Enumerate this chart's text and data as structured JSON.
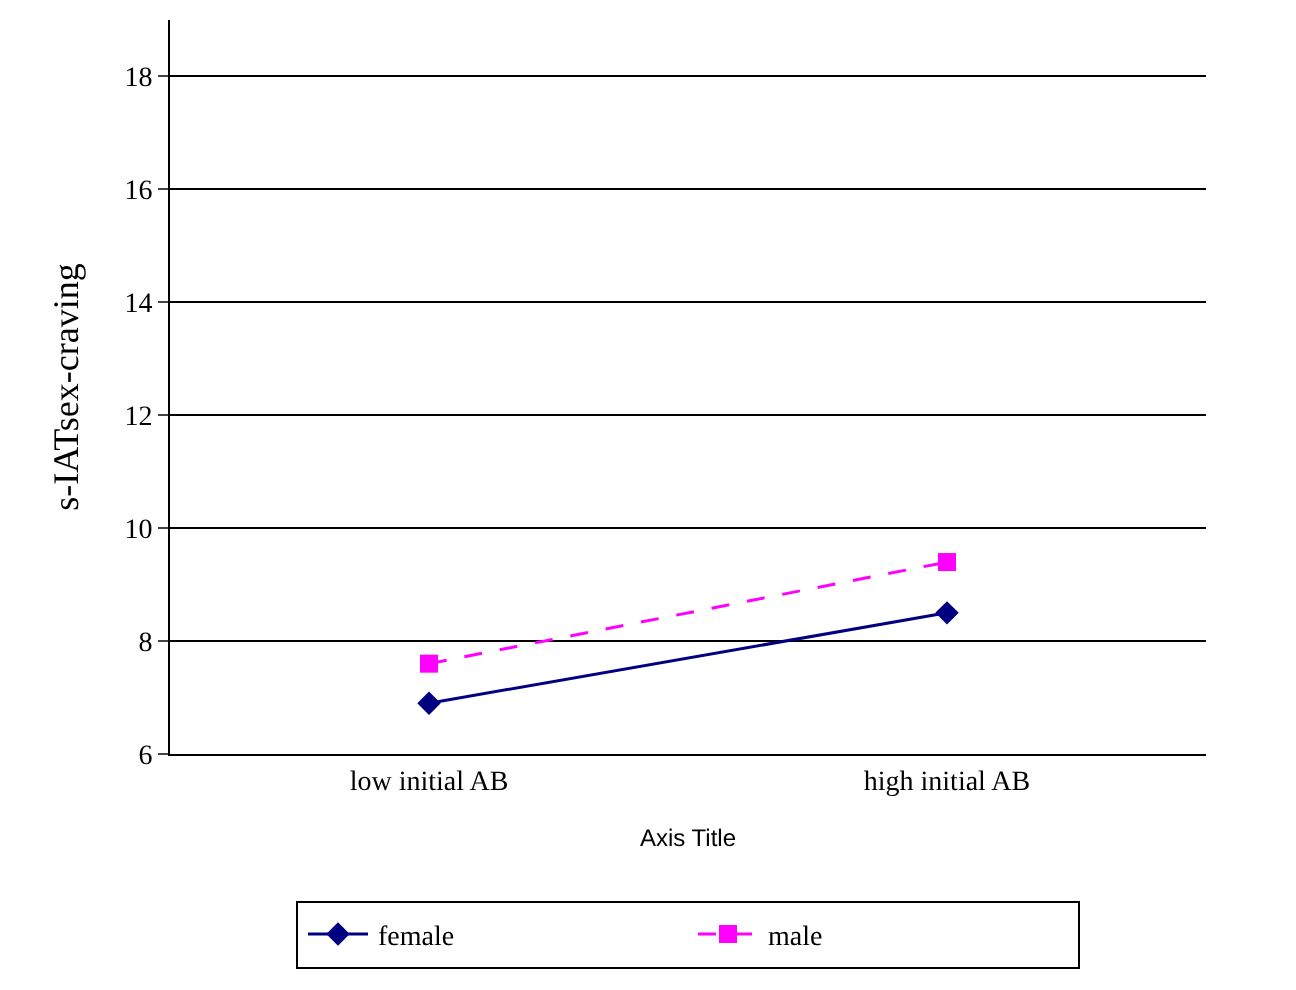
{
  "chart_data": {
    "type": "line",
    "xlabel": "Axis Title",
    "ylabel": "s-IATsex-craving",
    "categories": [
      "low initial AB",
      "high initial AB"
    ],
    "series": [
      {
        "name": "female",
        "color": "#000080",
        "values": [
          6.9,
          8.5
        ],
        "marker": "diamond",
        "line_style": "solid"
      },
      {
        "name": "male",
        "color": "#ff00ff",
        "values": [
          7.6,
          9.4
        ],
        "marker": "square",
        "line_style": "dashed"
      }
    ],
    "ylim": [
      6,
      19
    ],
    "yticks": [
      6,
      8,
      10,
      12,
      14,
      16,
      18
    ],
    "grid": "y",
    "legend": "bottom"
  }
}
